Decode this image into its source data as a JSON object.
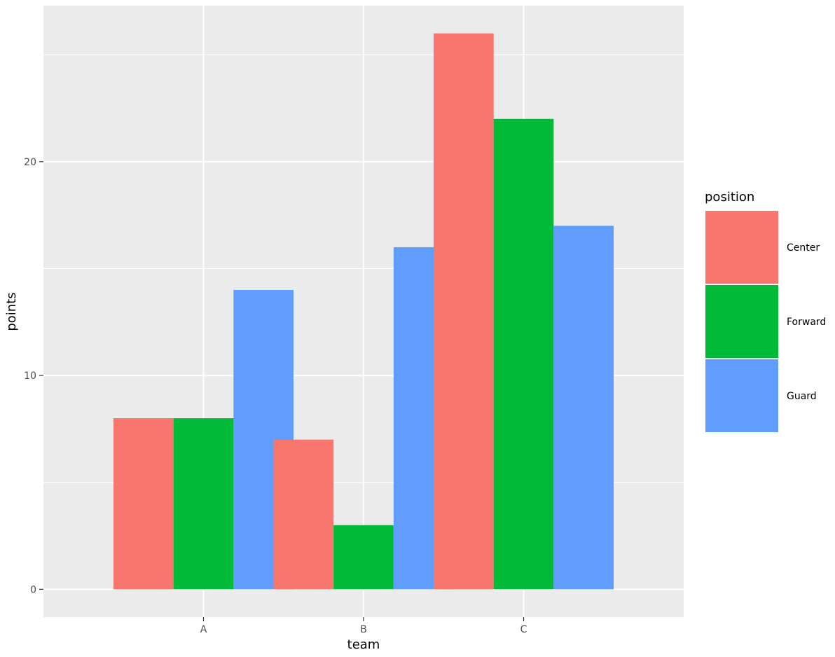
{
  "chart_data": {
    "type": "bar",
    "categories": [
      "A",
      "B",
      "C"
    ],
    "series": [
      {
        "name": "Center",
        "color": "#F8766D",
        "values": [
          8,
          7,
          26
        ]
      },
      {
        "name": "Forward",
        "color": "#00BA38",
        "values": [
          8,
          3,
          22
        ]
      },
      {
        "name": "Guard",
        "color": "#619CFF",
        "values": [
          14,
          16,
          17
        ]
      }
    ],
    "xlabel": "team",
    "ylabel": "points",
    "ylim": [
      -1.3,
      27.3
    ],
    "yticks": [
      0,
      10,
      20
    ],
    "ytick_labels": [
      "0",
      "10",
      "20"
    ],
    "legend": {
      "title": "position",
      "placement": "right"
    },
    "grid": true,
    "panel_background": "#EBEBEB",
    "grid_color": "#FFFFFF"
  }
}
